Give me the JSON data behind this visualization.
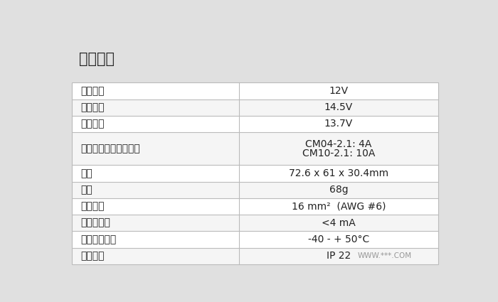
{
  "title": "技术参数",
  "title_bg": "#e0e0e0",
  "table_bg": "#ffffff",
  "row_bg_odd": "#ffffff",
  "row_bg_even": "#f5f5f5",
  "border_color": "#bbbbbb",
  "text_color": "#222222",
  "col_split": 0.455,
  "rows": [
    {
      "label": "额定电压",
      "value": "12V",
      "multiline": false
    },
    {
      "label": "强充电压",
      "value": "14.5V",
      "multiline": false
    },
    {
      "label": "浮充电压",
      "value": "13.7V",
      "multiline": false
    },
    {
      "label": "太阳能端最大充电电流",
      "value": "CM04-2.1: 4A\nCM10-2.1: 10A",
      "multiline": true
    },
    {
      "label": "尺寸",
      "value": "72.6 x 61 x 30.4mm",
      "multiline": false
    },
    {
      "label": "重量",
      "value": "68g",
      "multiline": false
    },
    {
      "label": "最大线径",
      "value": "16 mm²  (AWG #6)",
      "multiline": false
    },
    {
      "label": "自消耗电流",
      "value": "<4 mA",
      "multiline": false
    },
    {
      "label": "工作温度范围",
      "value": "-40 - + 50°C",
      "multiline": false
    },
    {
      "label": "防护等级",
      "value": "IP 22",
      "multiline": false
    }
  ],
  "row_heights": [
    1,
    1,
    1,
    2,
    1,
    1,
    1,
    1,
    1,
    1
  ],
  "figsize": [
    7.0,
    4.25
  ],
  "dpi": 100,
  "font_size_title": 15,
  "font_size_body": 10,
  "watermark": "WWW.***.COM"
}
